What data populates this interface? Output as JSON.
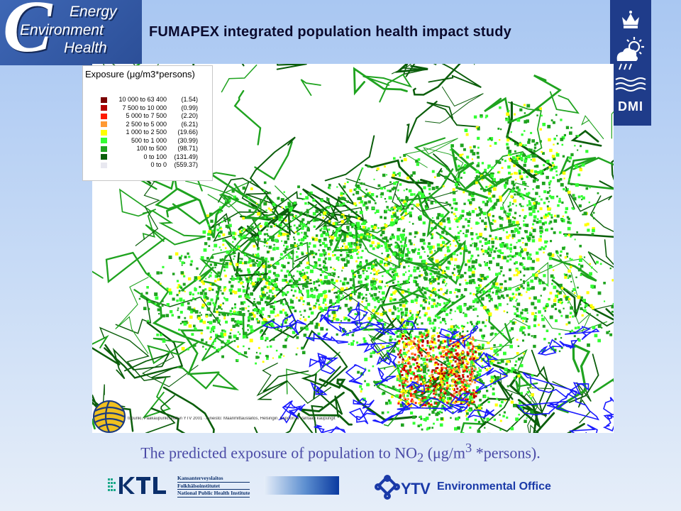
{
  "header": {
    "logo_words": [
      "Energy",
      "Environment",
      "Health"
    ],
    "logo_letter": "C",
    "title": "FUMAPEX integrated population health impact study",
    "dmi_label": "DMI"
  },
  "legend": {
    "title": "Exposure (μg/m3*persons)",
    "items": [
      {
        "range": "10 000 to 63 400",
        "area": "(1.54)",
        "color": "#7a0000"
      },
      {
        "range": "7 500 to 10 000",
        "area": "(0.99)",
        "color": "#b30000"
      },
      {
        "range": "5 000 to 7 500",
        "area": "(2.20)",
        "color": "#ff1a00"
      },
      {
        "range": "2 500 to 5 000",
        "area": "(6.21)",
        "color": "#ff9933"
      },
      {
        "range": "1 000 to 2 500",
        "area": "(19.66)",
        "color": "#ffff00"
      },
      {
        "range": "500 to 1 000",
        "area": "(30.99)",
        "color": "#33ff33"
      },
      {
        "range": "100 to 500",
        "area": "(98.71)",
        "color": "#1fa31f"
      },
      {
        "range": "0 to 100",
        "area": "(131.49)",
        "color": "#0b5e0b"
      },
      {
        "range": "0 to 0",
        "area": "(559.37)",
        "color": "#e8e8f0"
      }
    ]
  },
  "map": {
    "credit": "topunki, Pääkaupunkiseudun YTV 2001 · Aineisto: Maanmittauslaitos, Helsingin, Espoon ja Vantaan kaupungit",
    "coastline_color": "#1a1aff",
    "background_color": "#ffffff"
  },
  "caption": {
    "text_before": "The predicted exposure of population to NO",
    "sub": "2",
    "text_mid": " (μg/m",
    "sup": "3",
    "text_after": " *persons)."
  },
  "footer": {
    "ktl_lines": [
      "Kansanterveyslaitos",
      "Folkhälsoinstitutet",
      "National Public Health Institute"
    ],
    "ytv_label": "YTV",
    "office_label": "Environmental Office"
  }
}
